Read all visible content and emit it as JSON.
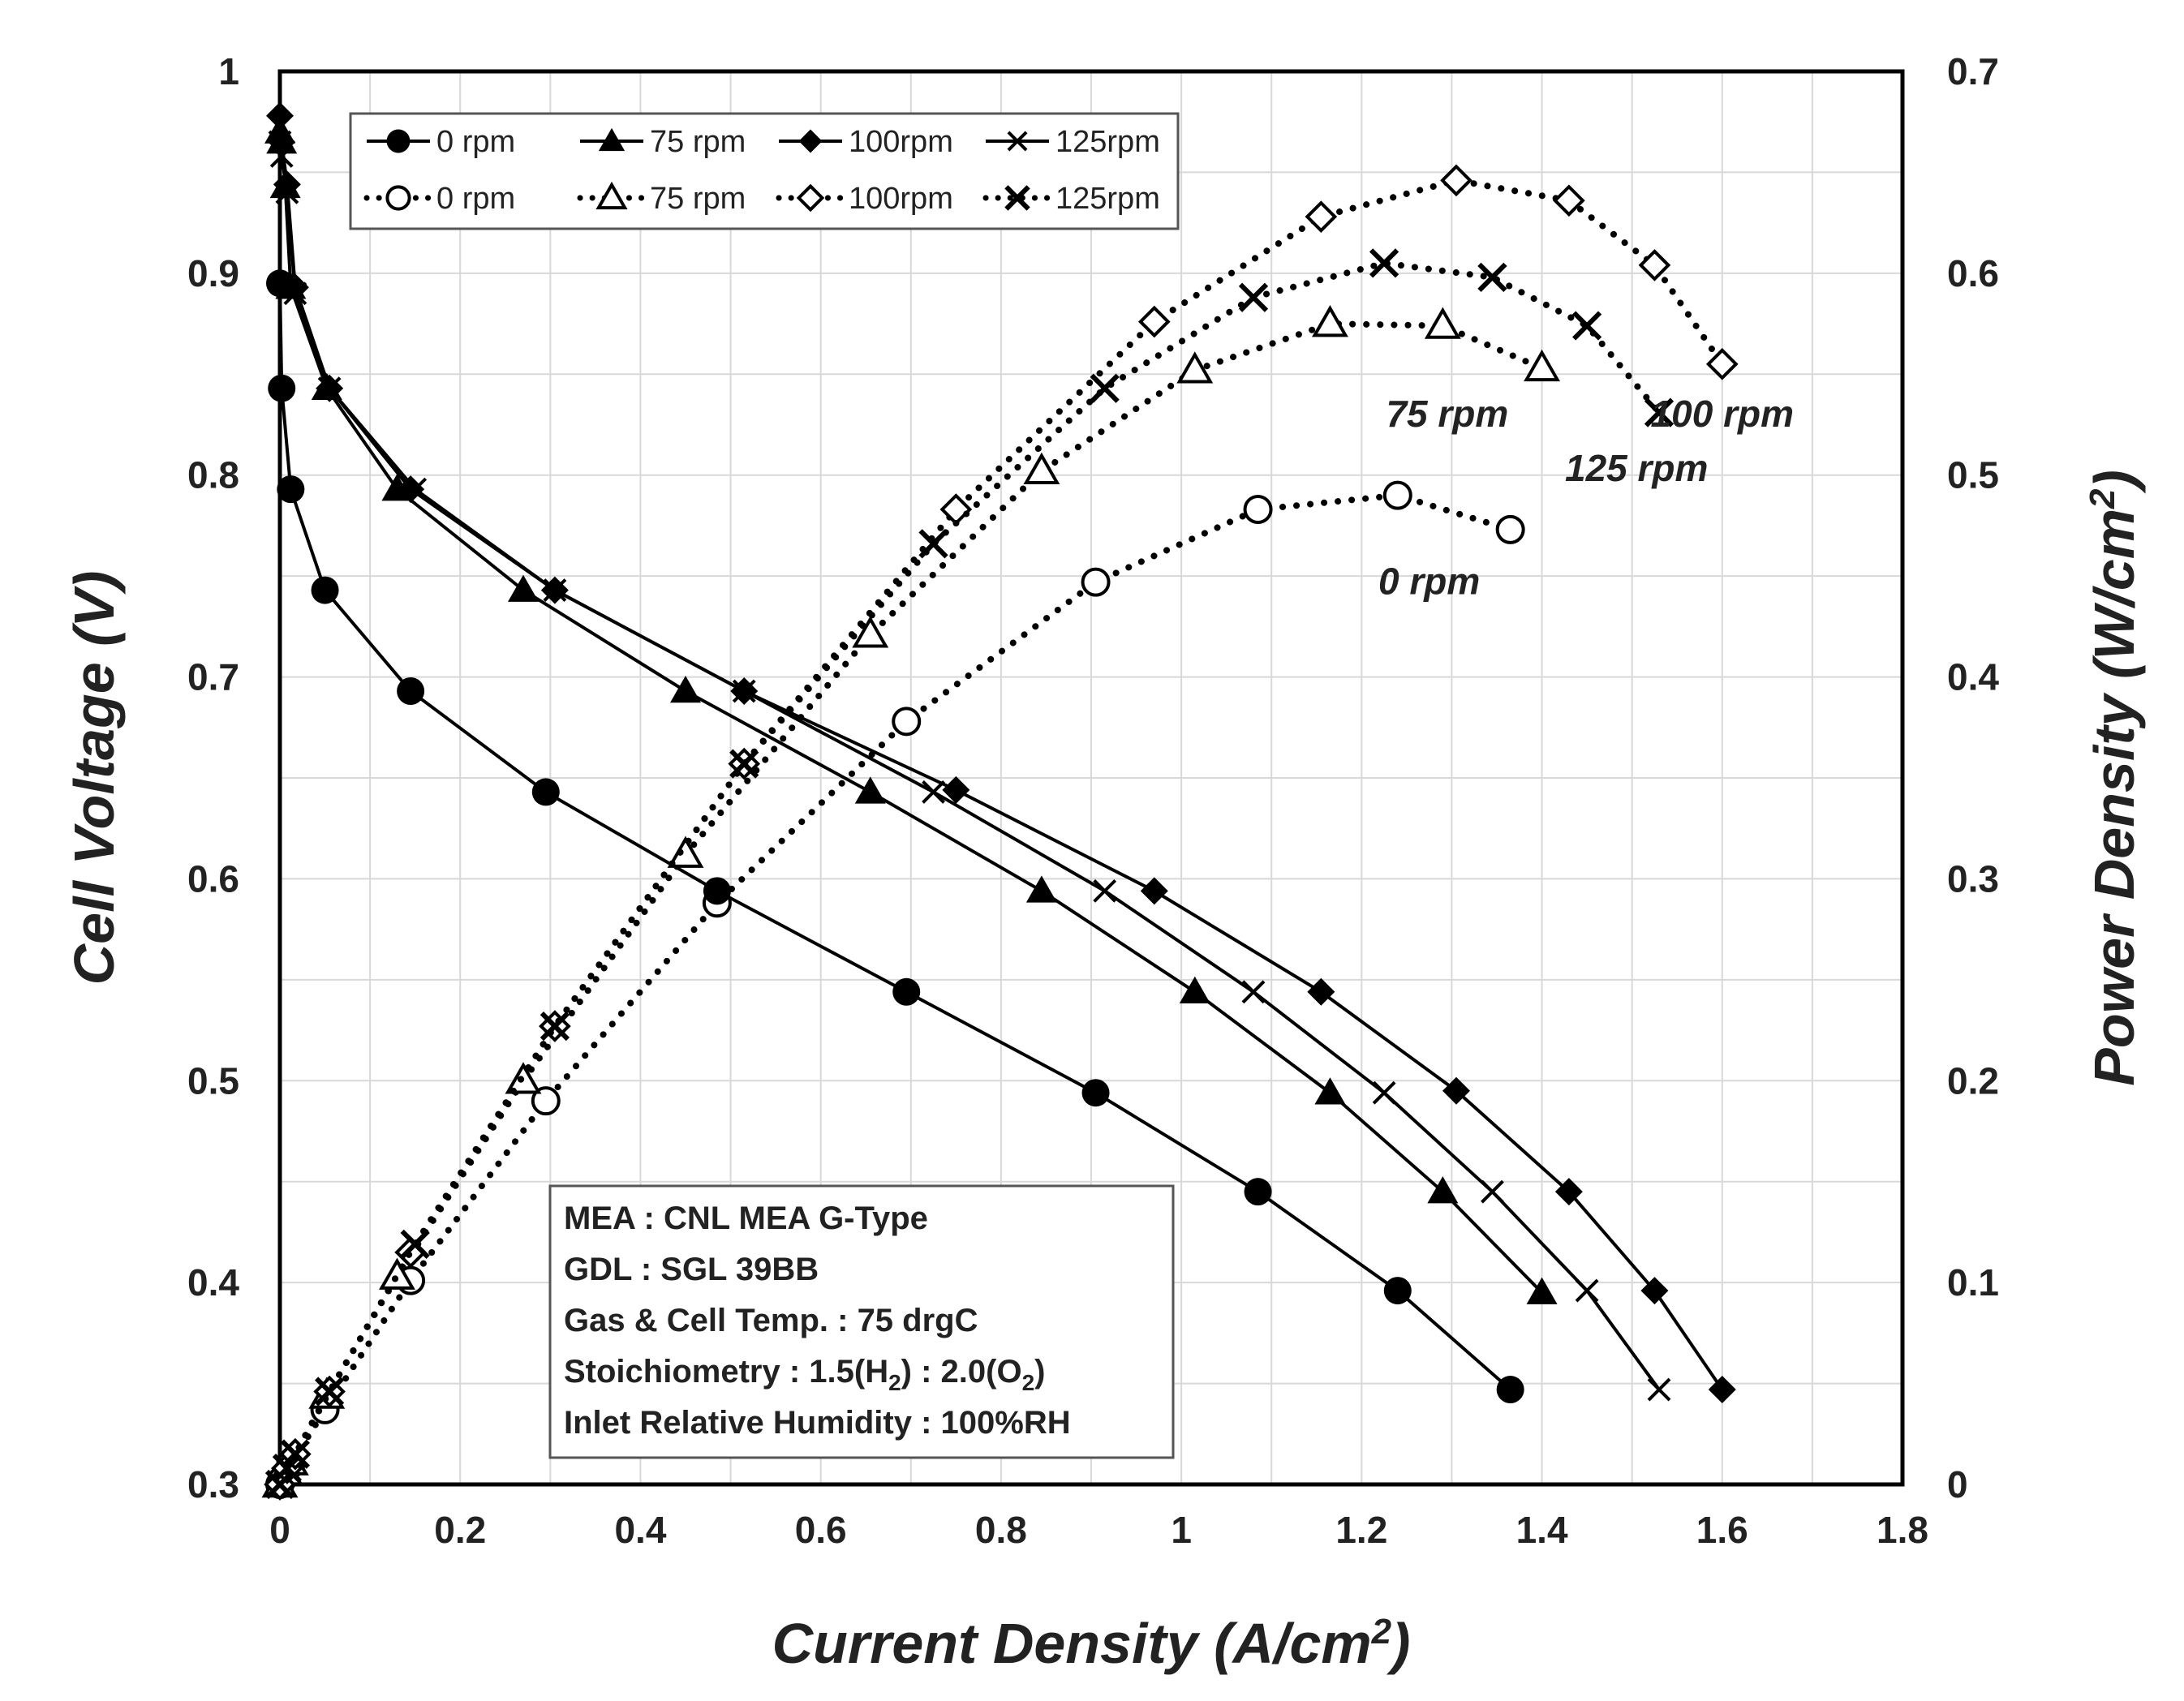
{
  "chart_data": {
    "type": "line",
    "xlabel": "Current Density (A/cm2)",
    "ylabel_left": "Cell Voltage (V)",
    "ylabel_right": "Power Density (W/cm2)",
    "xlim": [
      0,
      1.8
    ],
    "ylim_left": [
      0.3,
      1.0
    ],
    "ylim_right": [
      0,
      0.7
    ],
    "x_ticks": [
      "0",
      "0.2",
      "0.4",
      "0.6",
      "0.8",
      "1",
      "1.2",
      "1.4",
      "1.6",
      "1.8"
    ],
    "y_left_ticks": [
      "0.3",
      "0.4",
      "0.5",
      "0.6",
      "0.7",
      "0.8",
      "0.9",
      "1"
    ],
    "y_right_ticks": [
      "0",
      "0.1",
      "0.2",
      "0.3",
      "0.4",
      "0.5",
      "0.6",
      "0.7"
    ],
    "grid": true,
    "legend_position": "top-left",
    "voltage_series": [
      {
        "name": "0 rpm",
        "marker": "circle",
        "x": [
          0,
          0.002,
          0.012,
          0.05,
          0.145,
          0.295,
          0.485,
          0.695,
          0.905,
          1.085,
          1.24,
          1.365
        ],
        "y": [
          0.895,
          0.843,
          0.793,
          0.743,
          0.693,
          0.643,
          0.594,
          0.544,
          0.494,
          0.445,
          0.396,
          0.347
        ]
      },
      {
        "name": "75 rpm",
        "marker": "triangle",
        "x": [
          0,
          0.002,
          0.006,
          0.012,
          0.052,
          0.13,
          0.27,
          0.45,
          0.655,
          0.845,
          1.015,
          1.165,
          1.29,
          1.4
        ],
        "y": [
          0.97,
          0.965,
          0.943,
          0.893,
          0.843,
          0.793,
          0.743,
          0.693,
          0.643,
          0.594,
          0.544,
          0.494,
          0.445,
          0.395
        ]
      },
      {
        "name": "100rpm",
        "marker": "diamond",
        "x": [
          0,
          0.002,
          0.008,
          0.017,
          0.055,
          0.145,
          0.305,
          0.515,
          0.75,
          0.97,
          1.155,
          1.305,
          1.43,
          1.525,
          1.6
        ],
        "y": [
          0.978,
          0.965,
          0.944,
          0.893,
          0.843,
          0.793,
          0.743,
          0.693,
          0.644,
          0.594,
          0.544,
          0.495,
          0.445,
          0.396,
          0.347
        ]
      },
      {
        "name": "125rpm",
        "marker": "cross",
        "x": [
          0,
          0.002,
          0.008,
          0.017,
          0.055,
          0.15,
          0.305,
          0.515,
          0.725,
          0.915,
          1.08,
          1.225,
          1.345,
          1.45,
          1.53
        ],
        "y": [
          0.965,
          0.958,
          0.94,
          0.89,
          0.843,
          0.793,
          0.743,
          0.693,
          0.643,
          0.594,
          0.544,
          0.494,
          0.445,
          0.396,
          0.347
        ]
      }
    ],
    "power_series": [
      {
        "name": "0 rpm",
        "marker": "circle-open",
        "x": [
          0,
          0.002,
          0.012,
          0.05,
          0.145,
          0.295,
          0.485,
          0.695,
          0.905,
          1.085,
          1.24,
          1.365
        ],
        "y": [
          0,
          0.002,
          0.01,
          0.037,
          0.101,
          0.19,
          0.288,
          0.378,
          0.447,
          0.483,
          0.49,
          0.473
        ]
      },
      {
        "name": "75 rpm",
        "marker": "triangle-open",
        "x": [
          0,
          0.006,
          0.012,
          0.052,
          0.13,
          0.27,
          0.45,
          0.655,
          0.845,
          1.015,
          1.165,
          1.29,
          1.4
        ],
        "y": [
          0,
          0.006,
          0.011,
          0.044,
          0.103,
          0.2,
          0.312,
          0.421,
          0.502,
          0.552,
          0.575,
          0.574,
          0.553
        ]
      },
      {
        "name": "100rpm",
        "marker": "diamond-open",
        "x": [
          0,
          0.008,
          0.017,
          0.055,
          0.145,
          0.305,
          0.515,
          0.75,
          0.97,
          1.155,
          1.305,
          1.43,
          1.525,
          1.6
        ],
        "y": [
          0,
          0.008,
          0.015,
          0.046,
          0.115,
          0.227,
          0.357,
          0.483,
          0.576,
          0.628,
          0.646,
          0.636,
          0.604,
          0.555
        ]
      },
      {
        "name": "125rpm",
        "marker": "cross-open",
        "x": [
          0,
          0.008,
          0.017,
          0.055,
          0.15,
          0.305,
          0.515,
          0.725,
          0.915,
          1.08,
          1.225,
          1.345,
          1.45,
          1.53
        ],
        "y": [
          0,
          0.008,
          0.015,
          0.046,
          0.119,
          0.227,
          0.357,
          0.466,
          0.543,
          0.588,
          0.605,
          0.598,
          0.574,
          0.531
        ]
      }
    ],
    "annotations": [
      {
        "text": "75 rpm",
        "x": 1.295,
        "y_power": 0.524
      },
      {
        "text": "100 rpm",
        "x": 1.6,
        "y_power": 0.524
      },
      {
        "text": "125 rpm",
        "x": 1.505,
        "y_power": 0.497
      },
      {
        "text": "0 rpm",
        "x": 1.275,
        "y_power": 0.441
      }
    ],
    "info_box": [
      {
        "prefix": "MEA : CNL MEA G-Type"
      },
      {
        "prefix": "GDL : SGL 39BB"
      },
      {
        "prefix": "Gas & Cell Temp. : 75 drgC"
      },
      {
        "prefix": "Stoichiometry : 1.5(H",
        "sub1": "2",
        "mid": ") : 2.0(O",
        "sub2": "2",
        "suffix": ")"
      },
      {
        "prefix": "Inlet Relative Humidity : 100%RH"
      }
    ],
    "legend_labels": [
      "0 rpm",
      "75 rpm",
      "100rpm",
      "125rpm"
    ],
    "colors": {
      "series": "#000000",
      "grid": "#d8d8d8",
      "background": "#ffffff"
    }
  }
}
